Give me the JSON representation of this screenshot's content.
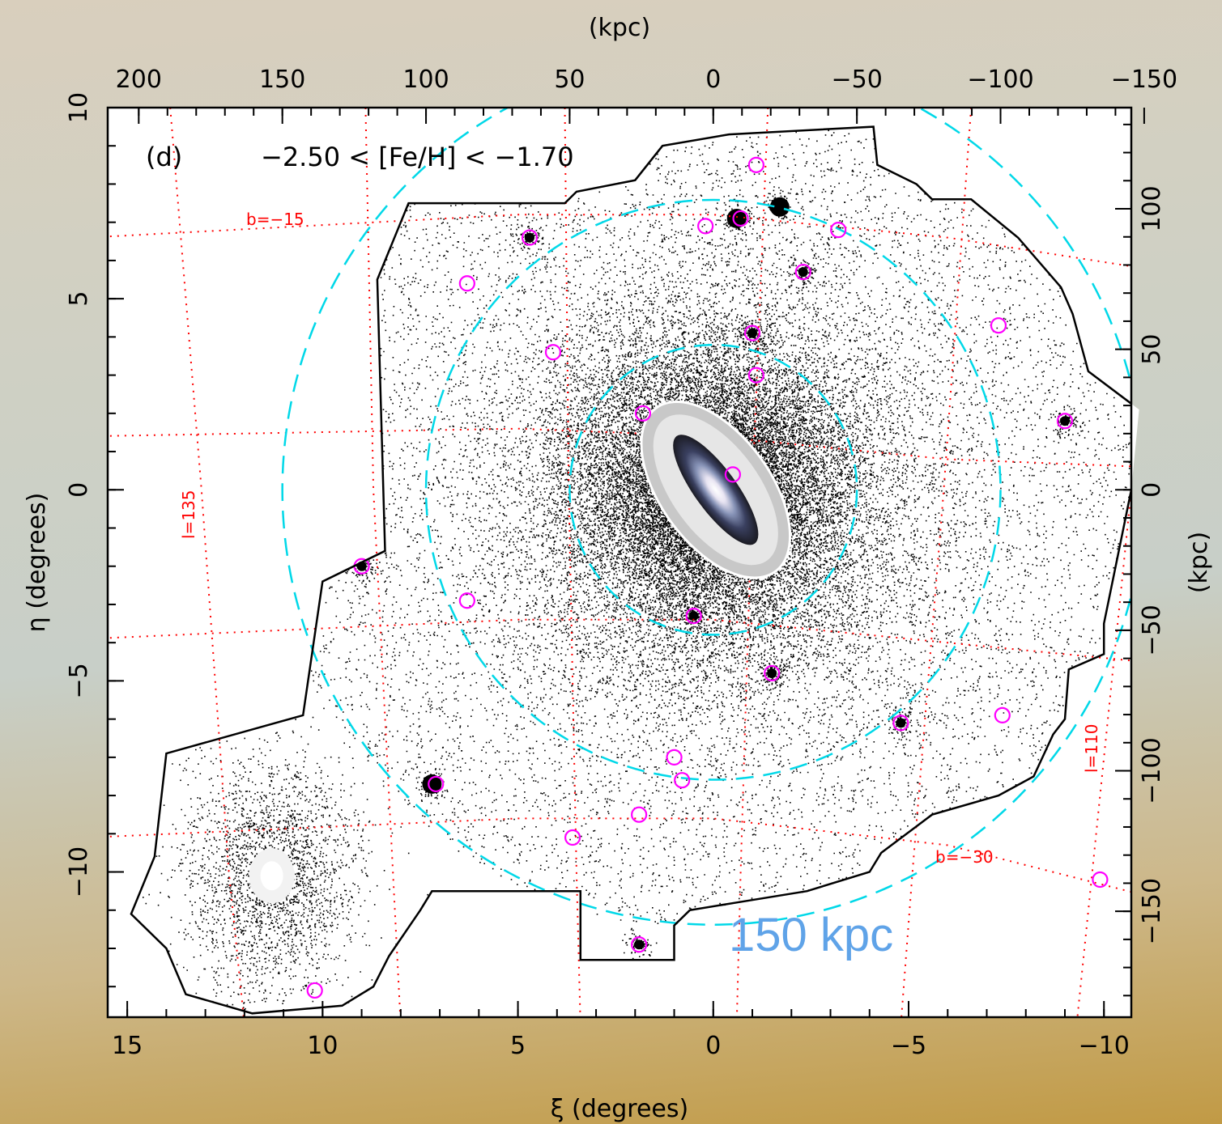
{
  "chart_data": {
    "type": "scatter",
    "panel_label": "(d)",
    "selection_label": "−2.50 < [Fe/H] < −1.70",
    "xlabel": "ξ (degrees)",
    "ylabel": "η (degrees)",
    "top_label": "(kpc)",
    "right_label": "(kpc)",
    "xlim": [
      15.5,
      -10.7
    ],
    "ylim": [
      -13.8,
      10.0
    ],
    "x_ticks": [
      15,
      10,
      5,
      0,
      -5,
      -10
    ],
    "x_tick_labels": [
      "15",
      "10",
      "5",
      "0",
      "−5",
      "−10"
    ],
    "y_ticks": [
      10,
      5,
      0,
      -5,
      -10
    ],
    "y_tick_labels": [
      "10",
      "5",
      "0",
      "−5",
      "−10"
    ],
    "top_ticks_kpc": [
      200,
      150,
      100,
      50,
      0,
      -50,
      -100,
      -150
    ],
    "top_tick_labels": [
      "200",
      "150",
      "100",
      "50",
      "0",
      "−50",
      "−100",
      "−150"
    ],
    "right_ticks_kpc": [
      100,
      50,
      0,
      -50,
      -100,
      -150
    ],
    "right_tick_labels": [
      "100",
      "50",
      "0",
      "−50",
      "−100",
      "−150"
    ],
    "kpc_per_degree": 13.6,
    "grid_labels": {
      "b_upper": "b=−15",
      "b_lower": "b=−30",
      "l_left": "l=135",
      "l_right": "l=110"
    },
    "scale_label": "150 kpc",
    "halo_circle_radii_kpc": [
      50,
      100,
      150
    ],
    "survey_footprint": [
      [
        14.9,
        -11.1
      ],
      [
        14.3,
        -9.6
      ],
      [
        14.0,
        -6.9
      ],
      [
        10.5,
        -5.9
      ],
      [
        10.0,
        -2.4
      ],
      [
        8.4,
        -1.6
      ],
      [
        8.6,
        5.5
      ],
      [
        8.2,
        6.5
      ],
      [
        7.8,
        7.5
      ],
      [
        3.8,
        7.5
      ],
      [
        3.5,
        7.8
      ],
      [
        2.0,
        8.1
      ],
      [
        1.3,
        9.0
      ],
      [
        -0.4,
        9.3
      ],
      [
        -4.1,
        9.5
      ],
      [
        -4.2,
        8.5
      ],
      [
        -5.2,
        8.0
      ],
      [
        -5.6,
        7.6
      ],
      [
        -6.6,
        7.6
      ],
      [
        -7.8,
        6.6
      ],
      [
        -8.9,
        5.3
      ],
      [
        -9.2,
        4.6
      ],
      [
        -9.6,
        3.1
      ],
      [
        -10.9,
        2.1
      ],
      [
        -10.7,
        0
      ],
      [
        -10.0,
        -3.5
      ],
      [
        -10.0,
        -4.3
      ],
      [
        -9.1,
        -4.7
      ],
      [
        -9.0,
        -6.0
      ],
      [
        -8.7,
        -6.4
      ],
      [
        -8.2,
        -7.5
      ],
      [
        -7.3,
        -8.0
      ],
      [
        -5.6,
        -8.5
      ],
      [
        -4.3,
        -9.5
      ],
      [
        -4.0,
        -10.0
      ],
      [
        -2.4,
        -10.5
      ],
      [
        -0.6,
        -10.8
      ],
      [
        0.6,
        -11.0
      ],
      [
        1.0,
        -11.4
      ],
      [
        1.0,
        -12.3
      ],
      [
        3.4,
        -12.3
      ],
      [
        3.4,
        -10.5
      ],
      [
        7.2,
        -10.5
      ],
      [
        7.5,
        -11.0
      ],
      [
        8.3,
        -12.2
      ],
      [
        8.7,
        -13.0
      ],
      [
        9.5,
        -13.5
      ],
      [
        11.8,
        -13.7
      ],
      [
        13.5,
        -13.2
      ],
      [
        14.0,
        -12.0
      ],
      [
        14.9,
        -11.1
      ]
    ],
    "m31_center": [
      0,
      0
    ],
    "m33_center": [
      11.3,
      -10.1
    ],
    "satellite_markers": [
      [
        -1.1,
        8.5
      ],
      [
        -0.7,
        7.1
      ],
      [
        0.2,
        6.9
      ],
      [
        -3.2,
        6.8
      ],
      [
        4.7,
        6.6
      ],
      [
        6.3,
        5.4
      ],
      [
        -2.3,
        5.7
      ],
      [
        -7.3,
        4.3
      ],
      [
        4.1,
        3.6
      ],
      [
        -1.0,
        4.1
      ],
      [
        -1.1,
        3.0
      ],
      [
        1.8,
        2.0
      ],
      [
        -9.0,
        1.8
      ],
      [
        -0.5,
        0.4
      ],
      [
        9.0,
        -2.0
      ],
      [
        6.3,
        -2.9
      ],
      [
        0.5,
        -3.3
      ],
      [
        -1.5,
        -4.8
      ],
      [
        -4.8,
        -6.1
      ],
      [
        -7.4,
        -5.9
      ],
      [
        1.0,
        -7.0
      ],
      [
        0.8,
        -7.6
      ],
      [
        7.1,
        -7.7
      ],
      [
        1.9,
        -8.5
      ],
      [
        3.6,
        -9.1
      ],
      [
        -9.9,
        -10.2
      ],
      [
        1.9,
        -11.9
      ],
      [
        10.2,
        -13.1
      ]
    ],
    "dwarf_overdensities": [
      [
        -0.6,
        7.1
      ],
      [
        -1.7,
        7.4
      ],
      [
        7.2,
        -7.7
      ],
      [
        9.0,
        -2.0
      ],
      [
        4.7,
        6.6
      ],
      [
        -2.3,
        5.7
      ],
      [
        -1.0,
        4.1
      ],
      [
        -4.8,
        -6.1
      ],
      [
        -9.0,
        1.8
      ],
      [
        1.9,
        -11.9
      ],
      [
        -1.5,
        -4.8
      ],
      [
        0.5,
        -3.3
      ]
    ],
    "colors": {
      "stars": "#000000",
      "satellite_circles": "#ff00ff",
      "halo_circles": "#00d8e8",
      "grid_lines": "#ff0000",
      "scale_label": "#5fa3e8"
    }
  }
}
